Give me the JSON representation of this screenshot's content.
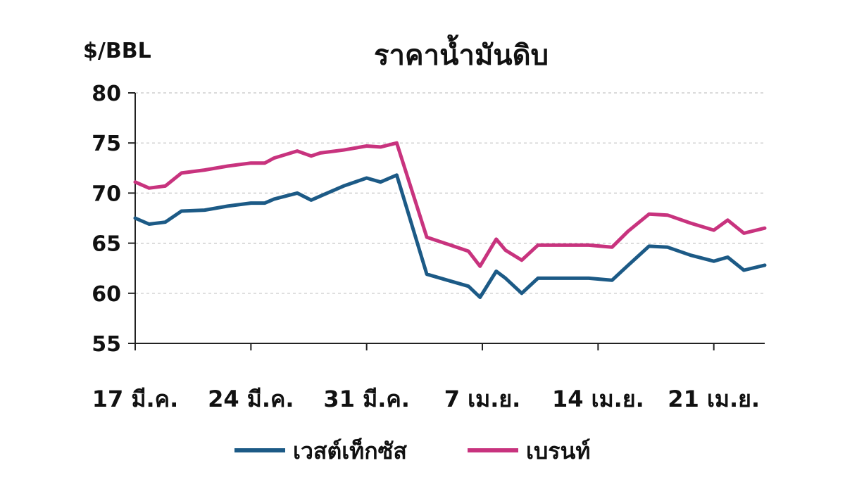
{
  "chart_data": {
    "type": "line",
    "title": "ราคาน้ำมันดิบ",
    "ylabel": "$/BBL",
    "xlabel": "",
    "ylim": [
      55,
      80
    ],
    "yticks": [
      55,
      60,
      65,
      70,
      75,
      80
    ],
    "xlim": [
      0,
      27.2
    ],
    "x_tick_positions": [
      0,
      5,
      10,
      15,
      20,
      25
    ],
    "x_tick_labels": [
      "17 มี.ค.",
      "24 มี.ค.",
      "31 มี.ค.",
      "7 เม.ย.",
      "14 เม.ย.",
      "21 เม.ย."
    ],
    "grid": true,
    "legend_position": "bottom",
    "x": [
      0,
      0.6,
      1.3,
      2,
      3,
      4,
      5,
      5.6,
      6,
      7,
      7.6,
      8,
      9,
      10,
      10.6,
      11.3,
      12.6,
      13.5,
      14.4,
      14.9,
      15.6,
      16,
      16.7,
      17.4,
      18.4,
      19.6,
      20.6,
      21.3,
      22.2,
      23,
      24,
      25,
      25.6,
      26.3,
      27.2
    ],
    "series": [
      {
        "name": "เวสต์เท็กซัส",
        "color": "#1c5a86",
        "values": [
          67.5,
          66.9,
          67.1,
          68.2,
          68.3,
          68.7,
          69.0,
          69.0,
          69.4,
          70.0,
          69.3,
          69.7,
          70.7,
          71.5,
          71.1,
          71.8,
          61.9,
          61.3,
          60.7,
          59.6,
          62.2,
          61.5,
          60.0,
          61.5,
          61.5,
          61.5,
          61.3,
          62.8,
          64.7,
          64.6,
          63.8,
          63.2,
          63.6,
          62.3,
          62.8
        ]
      },
      {
        "name": "เบรนท์",
        "color": "#c8337e",
        "values": [
          71.1,
          70.5,
          70.7,
          72.0,
          72.3,
          72.7,
          73.0,
          73.0,
          73.5,
          74.2,
          73.7,
          74.0,
          74.3,
          74.7,
          74.6,
          75.0,
          65.6,
          64.9,
          64.2,
          62.7,
          65.4,
          64.3,
          63.3,
          64.8,
          64.8,
          64.8,
          64.6,
          66.2,
          67.9,
          67.8,
          67.0,
          66.3,
          67.3,
          66.0,
          66.5
        ]
      }
    ]
  }
}
